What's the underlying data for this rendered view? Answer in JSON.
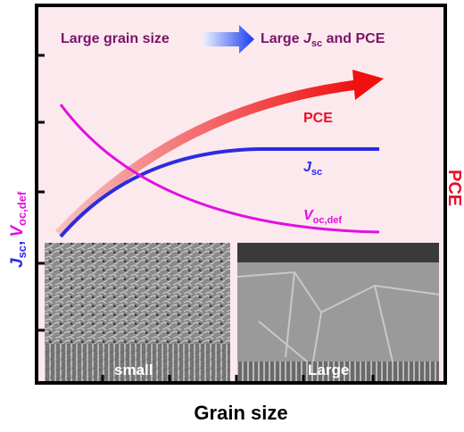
{
  "header": {
    "left": "Large grain size",
    "right": {
      "prefix": "Large ",
      "symbol": "J",
      "subscript": "sc",
      "suffix": " and PCE"
    }
  },
  "curve_labels": {
    "pce": "PCE",
    "jsc": {
      "symbol": "J",
      "subscript": "sc"
    },
    "voc": {
      "symbol": "V",
      "subscript": "oc,def"
    }
  },
  "y_axis_label": {
    "jsc": {
      "symbol": "J",
      "subscript": "sc",
      "separator": ","
    },
    "voc": {
      "symbol": "V",
      "subscript": "oc,def"
    }
  },
  "right_axis_label": "PCE",
  "x_axis_label": "Grain size",
  "images": {
    "left": "small",
    "right": "Large"
  }
}
